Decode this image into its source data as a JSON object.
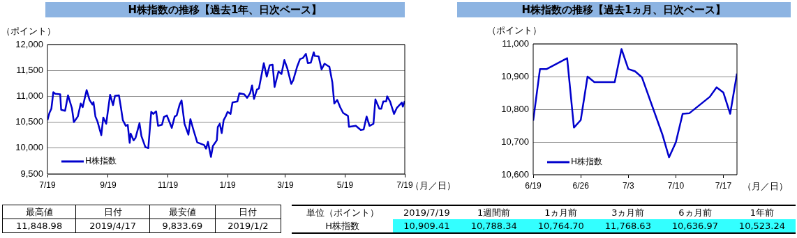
{
  "chart_data": [
    {
      "type": "line",
      "title": "H株指数の推移【過去1年、日次ベース】",
      "ylabel": "（ポイント）",
      "xlabel": "（月／日）",
      "x": [
        "2018-07-19",
        "2018-07-21",
        "2018-07-23",
        "2018-07-25",
        "2018-07-27",
        "2018-08-01",
        "2018-08-02",
        "2018-08-06",
        "2018-08-09",
        "2018-08-13",
        "2018-08-15",
        "2018-08-19",
        "2018-08-22",
        "2018-08-24",
        "2018-08-28",
        "2018-08-31",
        "2018-09-03",
        "2018-09-04",
        "2018-09-06",
        "2018-09-08",
        "2018-09-12",
        "2018-09-14",
        "2018-09-17",
        "2018-09-21",
        "2018-09-24",
        "2018-09-26",
        "2018-09-30",
        "2018-10-02",
        "2018-10-04",
        "2018-10-07",
        "2018-10-09",
        "2018-10-11",
        "2018-10-12",
        "2018-10-15",
        "2018-10-17",
        "2018-10-21",
        "2018-10-23",
        "2018-10-27",
        "2018-10-30",
        "2018-11-02",
        "2018-11-04",
        "2018-11-07",
        "2018-11-09",
        "2018-11-13",
        "2018-11-15",
        "2018-11-18",
        "2018-11-23",
        "2018-11-26",
        "2018-11-28",
        "2018-12-01",
        "2018-12-03",
        "2018-12-06",
        "2018-12-10",
        "2018-12-12",
        "2018-12-15",
        "2018-12-19",
        "2018-12-26",
        "2018-12-28",
        "2018-12-30",
        "2019-01-02",
        "2019-01-04",
        "2019-01-08",
        "2019-01-09",
        "2019-01-11",
        "2019-01-13",
        "2019-01-15",
        "2019-01-17",
        "2019-01-19",
        "2019-01-22",
        "2019-01-24",
        "2019-01-29",
        "2019-01-31",
        "2019-02-05",
        "2019-02-08",
        "2019-02-11",
        "2019-02-13",
        "2019-02-15",
        "2019-02-18",
        "2019-02-20",
        "2019-02-25",
        "2019-02-28",
        "2019-03-03",
        "2019-03-06",
        "2019-03-08",
        "2019-03-12",
        "2019-03-15",
        "2019-03-18",
        "2019-03-21",
        "2019-03-25",
        "2019-03-27",
        "2019-03-31",
        "2019-04-03",
        "2019-04-06",
        "2019-04-09",
        "2019-04-11",
        "2019-04-14",
        "2019-04-17",
        "2019-04-18",
        "2019-04-22",
        "2019-04-25",
        "2019-04-28",
        "2019-05-03",
        "2019-05-06",
        "2019-05-08",
        "2019-05-11",
        "2019-05-14",
        "2019-05-17",
        "2019-05-22",
        "2019-05-23",
        "2019-05-30",
        "2019-06-04",
        "2019-06-07",
        "2019-06-10",
        "2019-06-13",
        "2019-06-17",
        "2019-06-19",
        "2019-06-23",
        "2019-06-25",
        "2019-06-27",
        "2019-06-30",
        "2019-07-01",
        "2019-07-04",
        "2019-07-08",
        "2019-07-11",
        "2019-07-16",
        "2019-07-17",
        "2019-07-19"
      ],
      "series": [
        {
          "name": "H株指数",
          "color": "#0000cc",
          "values": [
            10540,
            10680,
            10760,
            11080,
            11050,
            11040,
            10740,
            10720,
            11020,
            10770,
            10500,
            10610,
            10860,
            10790,
            11120,
            10930,
            10840,
            10890,
            10610,
            10520,
            10250,
            10590,
            10470,
            11030,
            10830,
            11010,
            11020,
            10790,
            10540,
            10430,
            10450,
            10100,
            10280,
            10150,
            10200,
            10480,
            10230,
            10020,
            10000,
            10700,
            10660,
            10710,
            10430,
            10450,
            10600,
            10630,
            10390,
            10610,
            10630,
            10840,
            10920,
            10470,
            10260,
            10560,
            10360,
            10110,
            10060,
            9990,
            10120,
            9830,
            10040,
            10150,
            10410,
            10470,
            10290,
            10540,
            10610,
            10700,
            10660,
            10880,
            10900,
            11060,
            11040,
            10970,
            11060,
            11210,
            10950,
            11130,
            11150,
            11640,
            11380,
            11600,
            11610,
            11180,
            11480,
            11430,
            11700,
            11540,
            11240,
            11310,
            11570,
            11720,
            11740,
            11820,
            11640,
            11650,
            11850,
            11780,
            11770,
            11520,
            11630,
            11570,
            11270,
            10860,
            10930,
            10790,
            10680,
            10620,
            10410,
            10430,
            10350,
            10360,
            10610,
            10430,
            10470,
            10940,
            10760,
            10760,
            10900,
            10900,
            11000,
            10900,
            10660,
            10780,
            10880,
            10800,
            10910
          ]
        }
      ],
      "xlim": [
        "2018-07-19",
        "2019-07-19"
      ],
      "xticks": [
        {
          "value": "2018-07-19",
          "label": "7/19"
        },
        {
          "value": "2018-09-19",
          "label": "9/19"
        },
        {
          "value": "2018-11-19",
          "label": "11/19"
        },
        {
          "value": "2019-01-19",
          "label": "1/19"
        },
        {
          "value": "2019-03-19",
          "label": "3/19"
        },
        {
          "value": "2019-05-19",
          "label": "5/19"
        },
        {
          "value": "2019-07-19",
          "label": "7/19"
        }
      ],
      "ylim": [
        9500,
        12000
      ],
      "yticks": [
        {
          "value": 9500,
          "label": "9,500"
        },
        {
          "value": 10000,
          "label": "10,000"
        },
        {
          "value": 10500,
          "label": "10,500"
        },
        {
          "value": 11000,
          "label": "11,000"
        },
        {
          "value": 11500,
          "label": "11,500"
        },
        {
          "value": 12000,
          "label": "12,000"
        }
      ],
      "grid": "y",
      "legend": "bottom left",
      "marker": "none"
    },
    {
      "type": "line",
      "title": "H株指数の推移【過去1ヵ月、日次ベース】",
      "ylabel": "（ポイント）",
      "xlabel": "（月／日）",
      "x": [
        "2019-06-19",
        "2019-06-20",
        "2019-06-21",
        "2019-06-24",
        "2019-06-25",
        "2019-06-26",
        "2019-06-27",
        "2019-06-28",
        "2019-07-01",
        "2019-07-02",
        "2019-07-03",
        "2019-07-04",
        "2019-07-05",
        "2019-07-08",
        "2019-07-09",
        "2019-07-10",
        "2019-07-11",
        "2019-07-12",
        "2019-07-15",
        "2019-07-16",
        "2019-07-17",
        "2019-07-18",
        "2019-07-19"
      ],
      "series": [
        {
          "name": "H株指数",
          "color": "#0000cc",
          "values": [
            10765,
            10923,
            10923,
            10956,
            10744,
            10767,
            10900,
            10883,
            10883,
            10984,
            10923,
            10916,
            10898,
            10724,
            10653,
            10699,
            10786,
            10788,
            10838,
            10867,
            10851,
            10786,
            10909
          ]
        }
      ],
      "xlim": [
        "2019-06-19",
        "2019-07-19"
      ],
      "xticks": [
        {
          "value": "2019-06-19",
          "label": "6/19"
        },
        {
          "value": "2019-06-26",
          "label": "6/26"
        },
        {
          "value": "2019-07-03",
          "label": "7/3"
        },
        {
          "value": "2019-07-10",
          "label": "7/10"
        },
        {
          "value": "2019-07-17",
          "label": "7/17"
        }
      ],
      "ylim": [
        10600,
        11000
      ],
      "yticks": [
        {
          "value": 10600,
          "label": "10,600"
        },
        {
          "value": 10700,
          "label": "10,700"
        },
        {
          "value": 10800,
          "label": "10,800"
        },
        {
          "value": 10900,
          "label": "10,900"
        },
        {
          "value": 11000,
          "label": "11,000"
        }
      ],
      "grid": "y",
      "legend": "bottom left",
      "marker": "none"
    },
    {
      "type": "other",
      "annotations": [
        "最高値",
        "日付",
        "最安値",
        "日付",
        "11,848.98",
        "2019/4/17",
        "9,833.69",
        "2019/1/2"
      ]
    },
    {
      "type": "other",
      "color": "#33ffff",
      "annotations": [
        "単位（ポイント）",
        "2019/7/19",
        "1週間前",
        "1ヵ月前",
        "3ヵ月前",
        "6ヵ月前",
        "1年前",
        "H株指数",
        "10,909.41",
        "10,788.34",
        "10,764.70",
        "11,768.63",
        "10,636.97",
        "10,523.24"
      ]
    }
  ]
}
